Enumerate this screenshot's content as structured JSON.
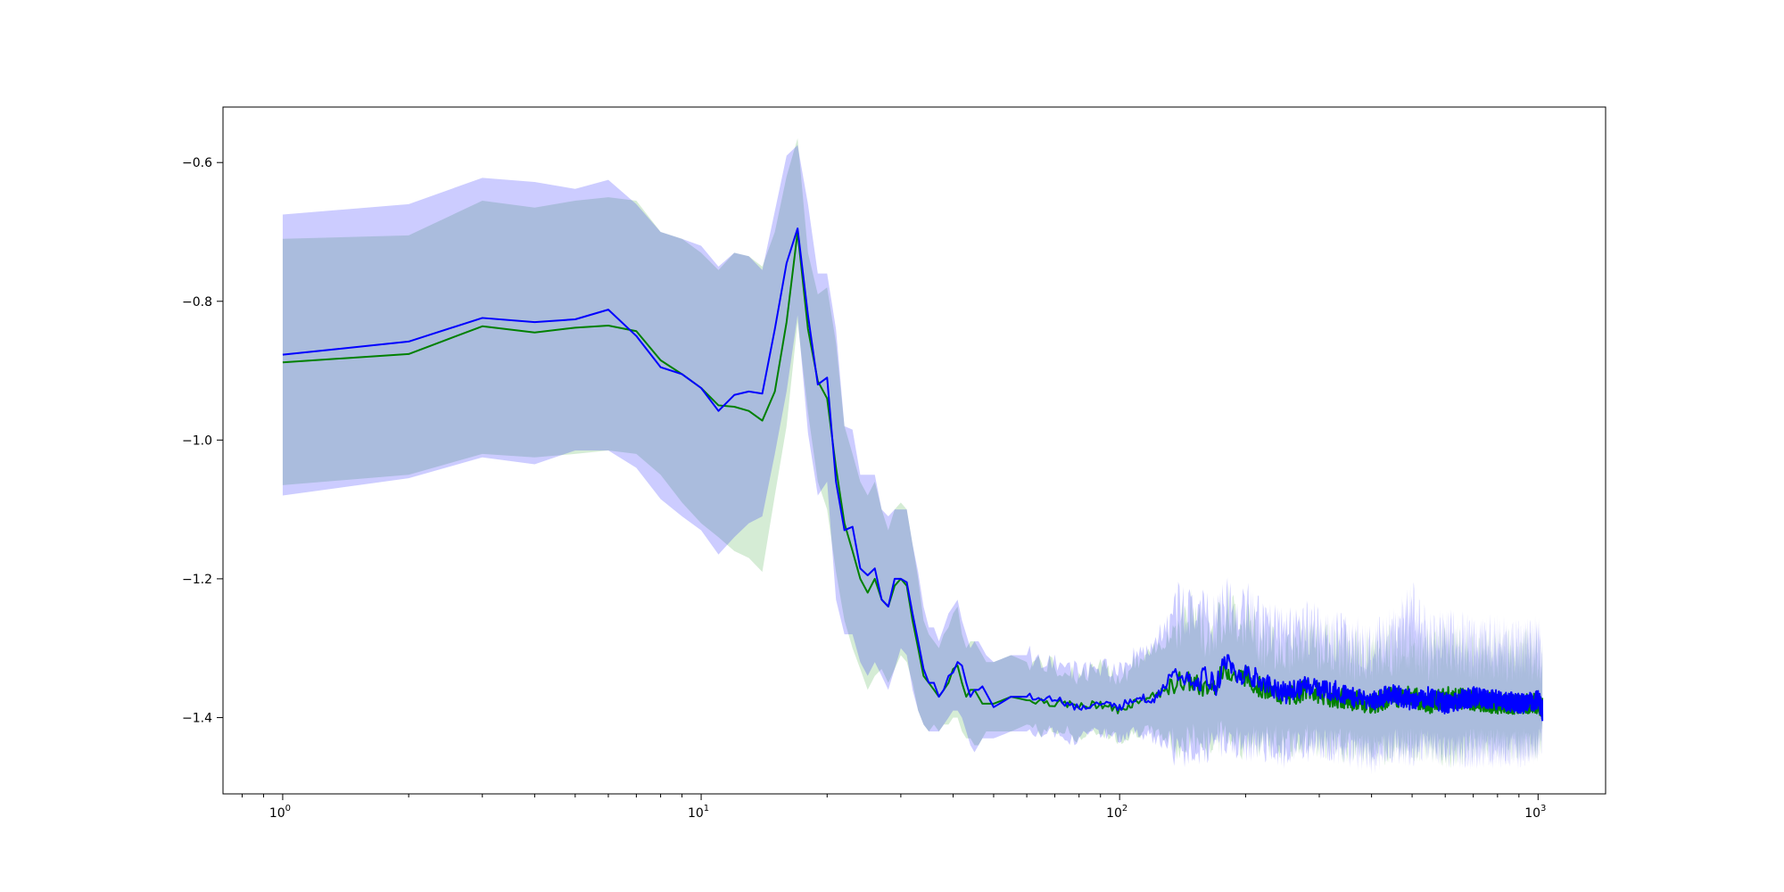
{
  "chart_data": {
    "type": "line",
    "title": "",
    "xlabel": "",
    "ylabel": "",
    "xscale": "log",
    "xlim": [
      0.72,
      1450
    ],
    "ylim": [
      -1.51,
      -0.52
    ],
    "grid": false,
    "legend": "none",
    "x_ticks": [
      {
        "value": 1,
        "base": "10",
        "exp": "0"
      },
      {
        "value": 10,
        "base": "10",
        "exp": "1"
      },
      {
        "value": 100,
        "base": "10",
        "exp": "2"
      },
      {
        "value": 1000,
        "base": "10",
        "exp": "3"
      }
    ],
    "y_ticks": [
      {
        "value": -0.6,
        "label": "−0.6"
      },
      {
        "value": -0.8,
        "label": "−0.8"
      },
      {
        "value": -1.0,
        "label": "−1.0"
      },
      {
        "value": -1.2,
        "label": "−1.2"
      },
      {
        "value": -1.4,
        "label": "−1.4"
      }
    ],
    "series": [
      {
        "color": "#008000",
        "band_color": "#2ca02c",
        "x": [
          1,
          2,
          3,
          4,
          5,
          6,
          7,
          8,
          9,
          10,
          11,
          12,
          13,
          14,
          15,
          16,
          17,
          18,
          19,
          20,
          21,
          22,
          23,
          24,
          25,
          26,
          27,
          28,
          29,
          30,
          31,
          32,
          33,
          34,
          35,
          36,
          37,
          38,
          39,
          40,
          41,
          42,
          43,
          44,
          45,
          46,
          47,
          48,
          50,
          55,
          60,
          65,
          70,
          75,
          80,
          90,
          100,
          110,
          120,
          130,
          140,
          150,
          160,
          170,
          180,
          190,
          200,
          220,
          250,
          280,
          320,
          360,
          400,
          450,
          500,
          550,
          600,
          700,
          800,
          900,
          1000,
          1024
        ],
        "mean": [
          -0.888,
          -0.876,
          -0.836,
          -0.845,
          -0.838,
          -0.835,
          -0.843,
          -0.885,
          -0.905,
          -0.925,
          -0.95,
          -0.952,
          -0.958,
          -0.972,
          -0.93,
          -0.83,
          -0.7,
          -0.84,
          -0.915,
          -0.94,
          -1.04,
          -1.12,
          -1.16,
          -1.2,
          -1.22,
          -1.2,
          -1.23,
          -1.24,
          -1.21,
          -1.2,
          -1.21,
          -1.26,
          -1.3,
          -1.34,
          -1.35,
          -1.36,
          -1.37,
          -1.36,
          -1.35,
          -1.33,
          -1.325,
          -1.35,
          -1.37,
          -1.36,
          -1.36,
          -1.37,
          -1.38,
          -1.38,
          -1.38,
          -1.37,
          -1.375,
          -1.375,
          -1.38,
          -1.38,
          -1.385,
          -1.38,
          -1.39,
          -1.375,
          -1.37,
          -1.36,
          -1.345,
          -1.35,
          -1.36,
          -1.35,
          -1.33,
          -1.34,
          -1.34,
          -1.36,
          -1.37,
          -1.36,
          -1.37,
          -1.375,
          -1.38,
          -1.37,
          -1.37,
          -1.38,
          -1.37,
          -1.375,
          -1.38,
          -1.38,
          -1.38,
          -1.385
        ],
        "lower": [
          -1.065,
          -1.05,
          -1.02,
          -1.025,
          -1.02,
          -1.015,
          -1.02,
          -1.05,
          -1.09,
          -1.12,
          -1.14,
          -1.16,
          -1.17,
          -1.19,
          -1.08,
          -0.98,
          -0.83,
          -0.96,
          -1.06,
          -1.1,
          -1.19,
          -1.26,
          -1.3,
          -1.33,
          -1.36,
          -1.34,
          -1.33,
          -1.35,
          -1.33,
          -1.31,
          -1.32,
          -1.35,
          -1.39,
          -1.41,
          -1.42,
          -1.41,
          -1.42,
          -1.41,
          -1.41,
          -1.4,
          -1.4,
          -1.42,
          -1.43,
          -1.43,
          -1.44,
          -1.44,
          -1.43,
          -1.42,
          -1.42,
          -1.42,
          -1.41,
          -1.42,
          -1.42,
          -1.42,
          -1.43,
          -1.42,
          -1.43,
          -1.42,
          -1.42,
          -1.43,
          -1.44,
          -1.43,
          -1.44,
          -1.43,
          -1.42,
          -1.43,
          -1.44,
          -1.43,
          -1.44,
          -1.43,
          -1.44,
          -1.44,
          -1.45,
          -1.44,
          -1.44,
          -1.44,
          -1.45,
          -1.44,
          -1.44,
          -1.44,
          -1.44,
          -1.43
        ],
        "upper": [
          -0.71,
          -0.705,
          -0.655,
          -0.665,
          -0.655,
          -0.65,
          -0.655,
          -0.7,
          -0.71,
          -0.73,
          -0.755,
          -0.73,
          -0.735,
          -0.75,
          -0.7,
          -0.62,
          -0.565,
          -0.73,
          -0.79,
          -0.78,
          -0.86,
          -0.98,
          -1.02,
          -1.06,
          -1.08,
          -1.06,
          -1.1,
          -1.13,
          -1.1,
          -1.09,
          -1.1,
          -1.15,
          -1.2,
          -1.26,
          -1.28,
          -1.29,
          -1.3,
          -1.28,
          -1.27,
          -1.25,
          -1.24,
          -1.28,
          -1.3,
          -1.29,
          -1.29,
          -1.3,
          -1.31,
          -1.32,
          -1.32,
          -1.31,
          -1.32,
          -1.32,
          -1.33,
          -1.33,
          -1.34,
          -1.33,
          -1.34,
          -1.32,
          -1.31,
          -1.28,
          -1.26,
          -1.25,
          -1.28,
          -1.27,
          -1.24,
          -1.26,
          -1.26,
          -1.29,
          -1.3,
          -1.29,
          -1.3,
          -1.31,
          -1.31,
          -1.3,
          -1.3,
          -1.31,
          -1.3,
          -1.31,
          -1.31,
          -1.31,
          -1.31,
          -1.32
        ]
      },
      {
        "color": "#0000ff",
        "band_color": "#0000ff",
        "x": [
          1,
          2,
          3,
          4,
          5,
          6,
          7,
          8,
          9,
          10,
          11,
          12,
          13,
          14,
          15,
          16,
          17,
          18,
          19,
          20,
          21,
          22,
          23,
          24,
          25,
          26,
          27,
          28,
          29,
          30,
          31,
          32,
          33,
          34,
          35,
          36,
          37,
          38,
          39,
          40,
          41,
          42,
          43,
          44,
          45,
          46,
          47,
          48,
          50,
          55,
          60,
          65,
          70,
          75,
          80,
          90,
          100,
          110,
          120,
          130,
          140,
          150,
          160,
          170,
          180,
          190,
          200,
          220,
          250,
          280,
          320,
          360,
          400,
          450,
          500,
          550,
          600,
          700,
          800,
          900,
          1000,
          1024
        ],
        "mean": [
          -0.877,
          -0.858,
          -0.824,
          -0.83,
          -0.826,
          -0.812,
          -0.85,
          -0.895,
          -0.905,
          -0.925,
          -0.958,
          -0.935,
          -0.93,
          -0.933,
          -0.84,
          -0.745,
          -0.695,
          -0.82,
          -0.92,
          -0.91,
          -1.06,
          -1.13,
          -1.125,
          -1.185,
          -1.195,
          -1.185,
          -1.23,
          -1.24,
          -1.2,
          -1.2,
          -1.205,
          -1.25,
          -1.29,
          -1.33,
          -1.35,
          -1.35,
          -1.37,
          -1.36,
          -1.34,
          -1.335,
          -1.32,
          -1.325,
          -1.35,
          -1.37,
          -1.36,
          -1.36,
          -1.355,
          -1.365,
          -1.385,
          -1.37,
          -1.37,
          -1.375,
          -1.37,
          -1.38,
          -1.385,
          -1.38,
          -1.385,
          -1.37,
          -1.375,
          -1.35,
          -1.335,
          -1.36,
          -1.34,
          -1.355,
          -1.315,
          -1.34,
          -1.335,
          -1.35,
          -1.365,
          -1.355,
          -1.36,
          -1.37,
          -1.375,
          -1.365,
          -1.375,
          -1.37,
          -1.38,
          -1.37,
          -1.375,
          -1.38,
          -1.375,
          -1.39
        ],
        "lower": [
          -1.08,
          -1.055,
          -1.025,
          -1.035,
          -1.015,
          -1.015,
          -1.04,
          -1.085,
          -1.11,
          -1.13,
          -1.165,
          -1.14,
          -1.12,
          -1.11,
          -1.02,
          -0.93,
          -0.82,
          -0.99,
          -1.08,
          -1.06,
          -1.23,
          -1.28,
          -1.28,
          -1.32,
          -1.34,
          -1.32,
          -1.34,
          -1.36,
          -1.33,
          -1.3,
          -1.31,
          -1.36,
          -1.39,
          -1.41,
          -1.42,
          -1.42,
          -1.42,
          -1.41,
          -1.4,
          -1.39,
          -1.39,
          -1.4,
          -1.42,
          -1.44,
          -1.45,
          -1.44,
          -1.43,
          -1.43,
          -1.43,
          -1.42,
          -1.42,
          -1.43,
          -1.42,
          -1.43,
          -1.43,
          -1.42,
          -1.43,
          -1.42,
          -1.43,
          -1.44,
          -1.45,
          -1.44,
          -1.45,
          -1.44,
          -1.43,
          -1.44,
          -1.44,
          -1.44,
          -1.45,
          -1.44,
          -1.44,
          -1.45,
          -1.46,
          -1.44,
          -1.45,
          -1.44,
          -1.45,
          -1.45,
          -1.45,
          -1.45,
          -1.44,
          -1.43
        ],
        "upper": [
          -0.675,
          -0.66,
          -0.622,
          -0.628,
          -0.638,
          -0.625,
          -0.66,
          -0.7,
          -0.71,
          -0.72,
          -0.75,
          -0.73,
          -0.735,
          -0.755,
          -0.67,
          -0.59,
          -0.575,
          -0.66,
          -0.76,
          -0.76,
          -0.84,
          -0.98,
          -0.985,
          -1.05,
          -1.05,
          -1.05,
          -1.1,
          -1.11,
          -1.1,
          -1.1,
          -1.1,
          -1.15,
          -1.19,
          -1.24,
          -1.27,
          -1.27,
          -1.29,
          -1.27,
          -1.25,
          -1.24,
          -1.23,
          -1.26,
          -1.28,
          -1.3,
          -1.29,
          -1.29,
          -1.3,
          -1.31,
          -1.32,
          -1.31,
          -1.31,
          -1.32,
          -1.32,
          -1.33,
          -1.33,
          -1.33,
          -1.33,
          -1.31,
          -1.3,
          -1.26,
          -1.24,
          -1.26,
          -1.25,
          -1.26,
          -1.23,
          -1.25,
          -1.24,
          -1.27,
          -1.28,
          -1.27,
          -1.28,
          -1.29,
          -1.3,
          -1.28,
          -1.24,
          -1.29,
          -1.28,
          -1.29,
          -1.29,
          -1.3,
          -1.29,
          -1.31
        ]
      }
    ]
  }
}
